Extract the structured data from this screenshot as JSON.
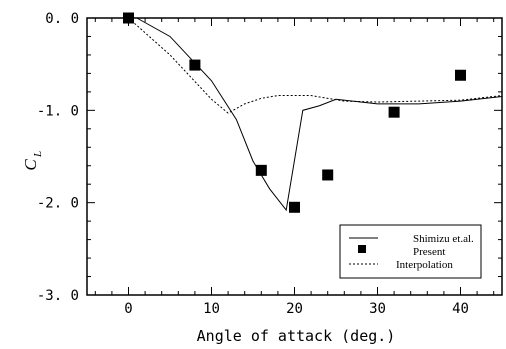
{
  "chart_data": {
    "type": "line",
    "title": "",
    "xlabel": "Angle of attack (deg.)",
    "ylabel_main": "C",
    "ylabel_sub": "L",
    "xlim": [
      -5,
      45
    ],
    "ylim": [
      -3.0,
      0.0
    ],
    "xticks": [
      0,
      10,
      20,
      30,
      40
    ],
    "yticks": [
      0.0,
      -1.0,
      -2.0,
      -3.0
    ],
    "ytick_labels": [
      "0. 0",
      "-1. 0",
      "-2. 0",
      "-3. 0"
    ],
    "xtick_labels": [
      "0",
      "10",
      "20",
      "30",
      "40"
    ],
    "legend_position": "bottom-right",
    "series": [
      {
        "name": "Shimizu et.al.",
        "style": "solid",
        "x": [
          1,
          5,
          10,
          13,
          15,
          17,
          19,
          21,
          23,
          25,
          30,
          35,
          40,
          45
        ],
        "y": [
          0.0,
          -0.2,
          -0.68,
          -1.1,
          -1.55,
          -1.85,
          -2.08,
          -1.0,
          -0.95,
          -0.88,
          -0.93,
          -0.93,
          -0.9,
          -0.85
        ]
      },
      {
        "name": "Present",
        "style": "marker",
        "x": [
          0,
          8,
          16,
          20,
          24,
          32,
          40
        ],
        "y": [
          0.0,
          -0.51,
          -1.65,
          -2.05,
          -1.7,
          -1.02,
          -0.62
        ]
      },
      {
        "name": "Interpolation",
        "style": "dotted",
        "x": [
          0,
          5,
          10,
          12,
          14,
          16,
          18,
          20,
          22,
          24,
          26,
          30,
          35,
          40,
          45
        ],
        "y": [
          0.0,
          -0.4,
          -0.88,
          -1.03,
          -0.93,
          -0.87,
          -0.84,
          -0.84,
          -0.84,
          -0.87,
          -0.9,
          -0.91,
          -0.9,
          -0.89,
          -0.84
        ]
      }
    ]
  }
}
